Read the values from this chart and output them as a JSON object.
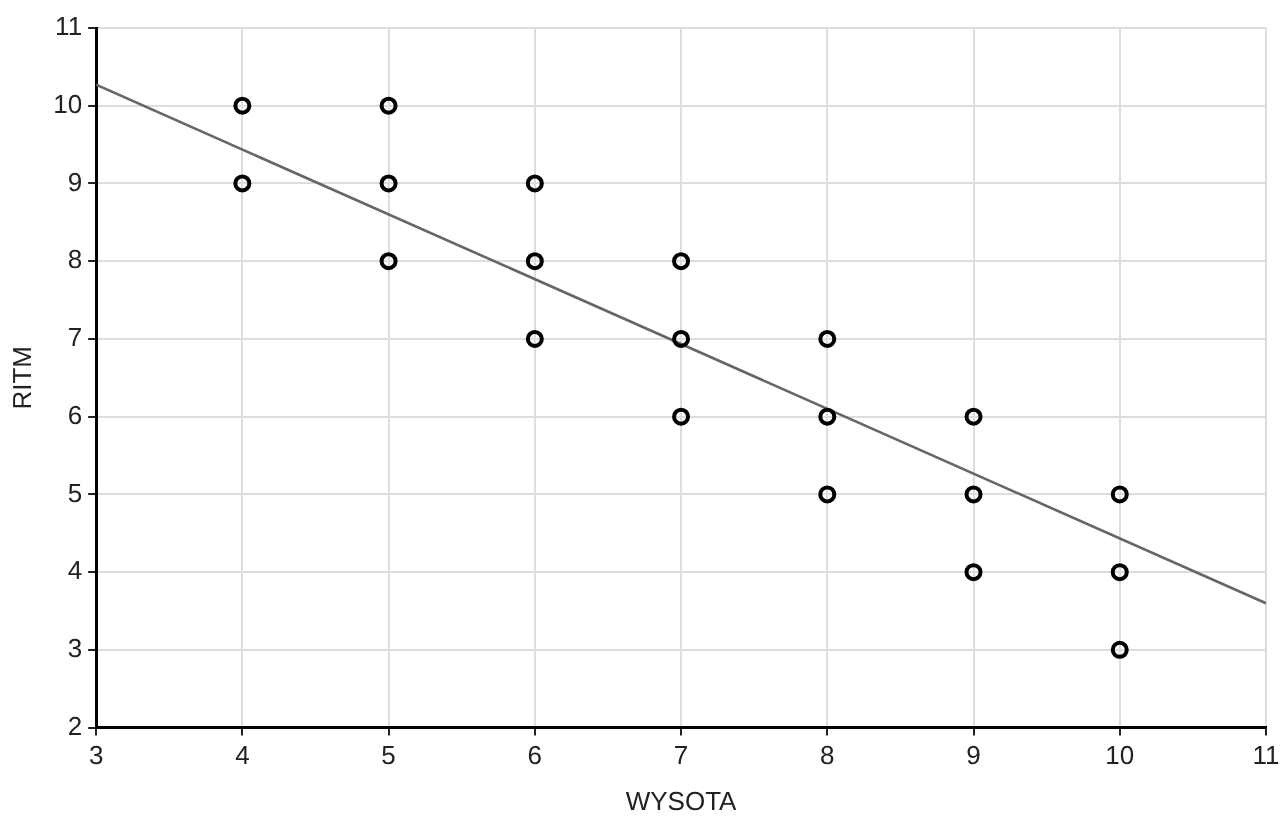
{
  "chart_data": {
    "type": "scatter",
    "xlabel": "WYSOTA",
    "ylabel": "RITM",
    "xlim": [
      3,
      11
    ],
    "ylim": [
      2,
      11
    ],
    "xticks": [
      3,
      4,
      5,
      6,
      7,
      8,
      9,
      10,
      11
    ],
    "yticks": [
      2,
      3,
      4,
      5,
      6,
      7,
      8,
      9,
      10,
      11
    ],
    "grid": true,
    "legend": false,
    "marker": "circle",
    "series": [
      {
        "color": "#000000",
        "x": [
          4,
          4,
          5,
          5,
          5,
          6,
          6,
          6,
          7,
          7,
          7,
          8,
          8,
          8,
          9,
          9,
          9,
          10,
          10,
          10
        ],
        "values": [
          10,
          9,
          10,
          9,
          8,
          9,
          8,
          7,
          8,
          7,
          6,
          7,
          6,
          5,
          6,
          5,
          4,
          5,
          4,
          3
        ]
      },
      {
        "type": "line",
        "color": "#666666",
        "marker": "none",
        "line_style": "solid",
        "x": [
          3,
          11
        ],
        "values": [
          10.27,
          3.6
        ]
      }
    ]
  }
}
